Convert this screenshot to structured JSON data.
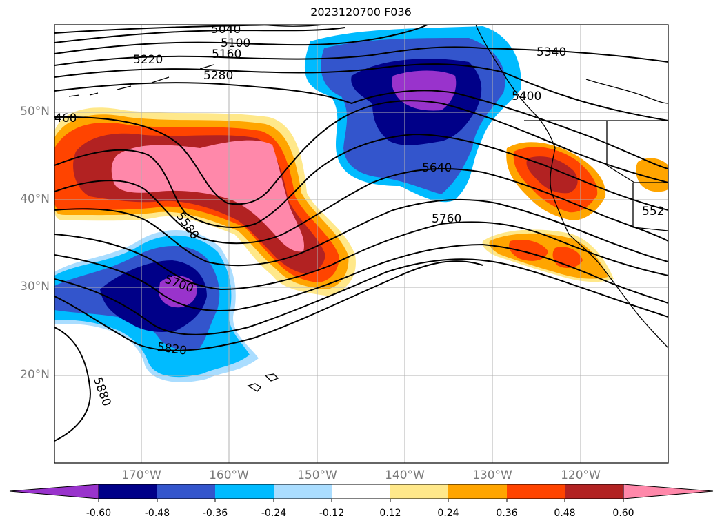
{
  "title": "2023120700 F036",
  "lat_labels": [
    "50°N",
    "40°N",
    "30°N",
    "20°N"
  ],
  "lon_labels": [
    "170°W",
    "160°W",
    "150°W",
    "140°W",
    "130°W",
    "120°W"
  ],
  "contour_labels": [
    "5040",
    "5100",
    "5160",
    "5220",
    "5280",
    "5340",
    "5400",
    "460",
    "552",
    "5580",
    "5640",
    "5700",
    "5760",
    "5820",
    "5880"
  ],
  "colorbar": {
    "ticks": [
      "-0.60",
      "-0.48",
      "-0.36",
      "-0.24",
      "-0.12",
      "0.12",
      "0.24",
      "0.36",
      "0.48",
      "0.60"
    ],
    "colors": [
      "#9933cc",
      "#000088",
      "#3355cc",
      "#00bbff",
      "#aaddff",
      "#ffffff",
      "#ffe88a",
      "#ffa500",
      "#ff4400",
      "#b22222",
      "#ff88aa"
    ]
  },
  "icons": [
    "coastline-icon",
    "colorbar-arrow-icon"
  ]
}
